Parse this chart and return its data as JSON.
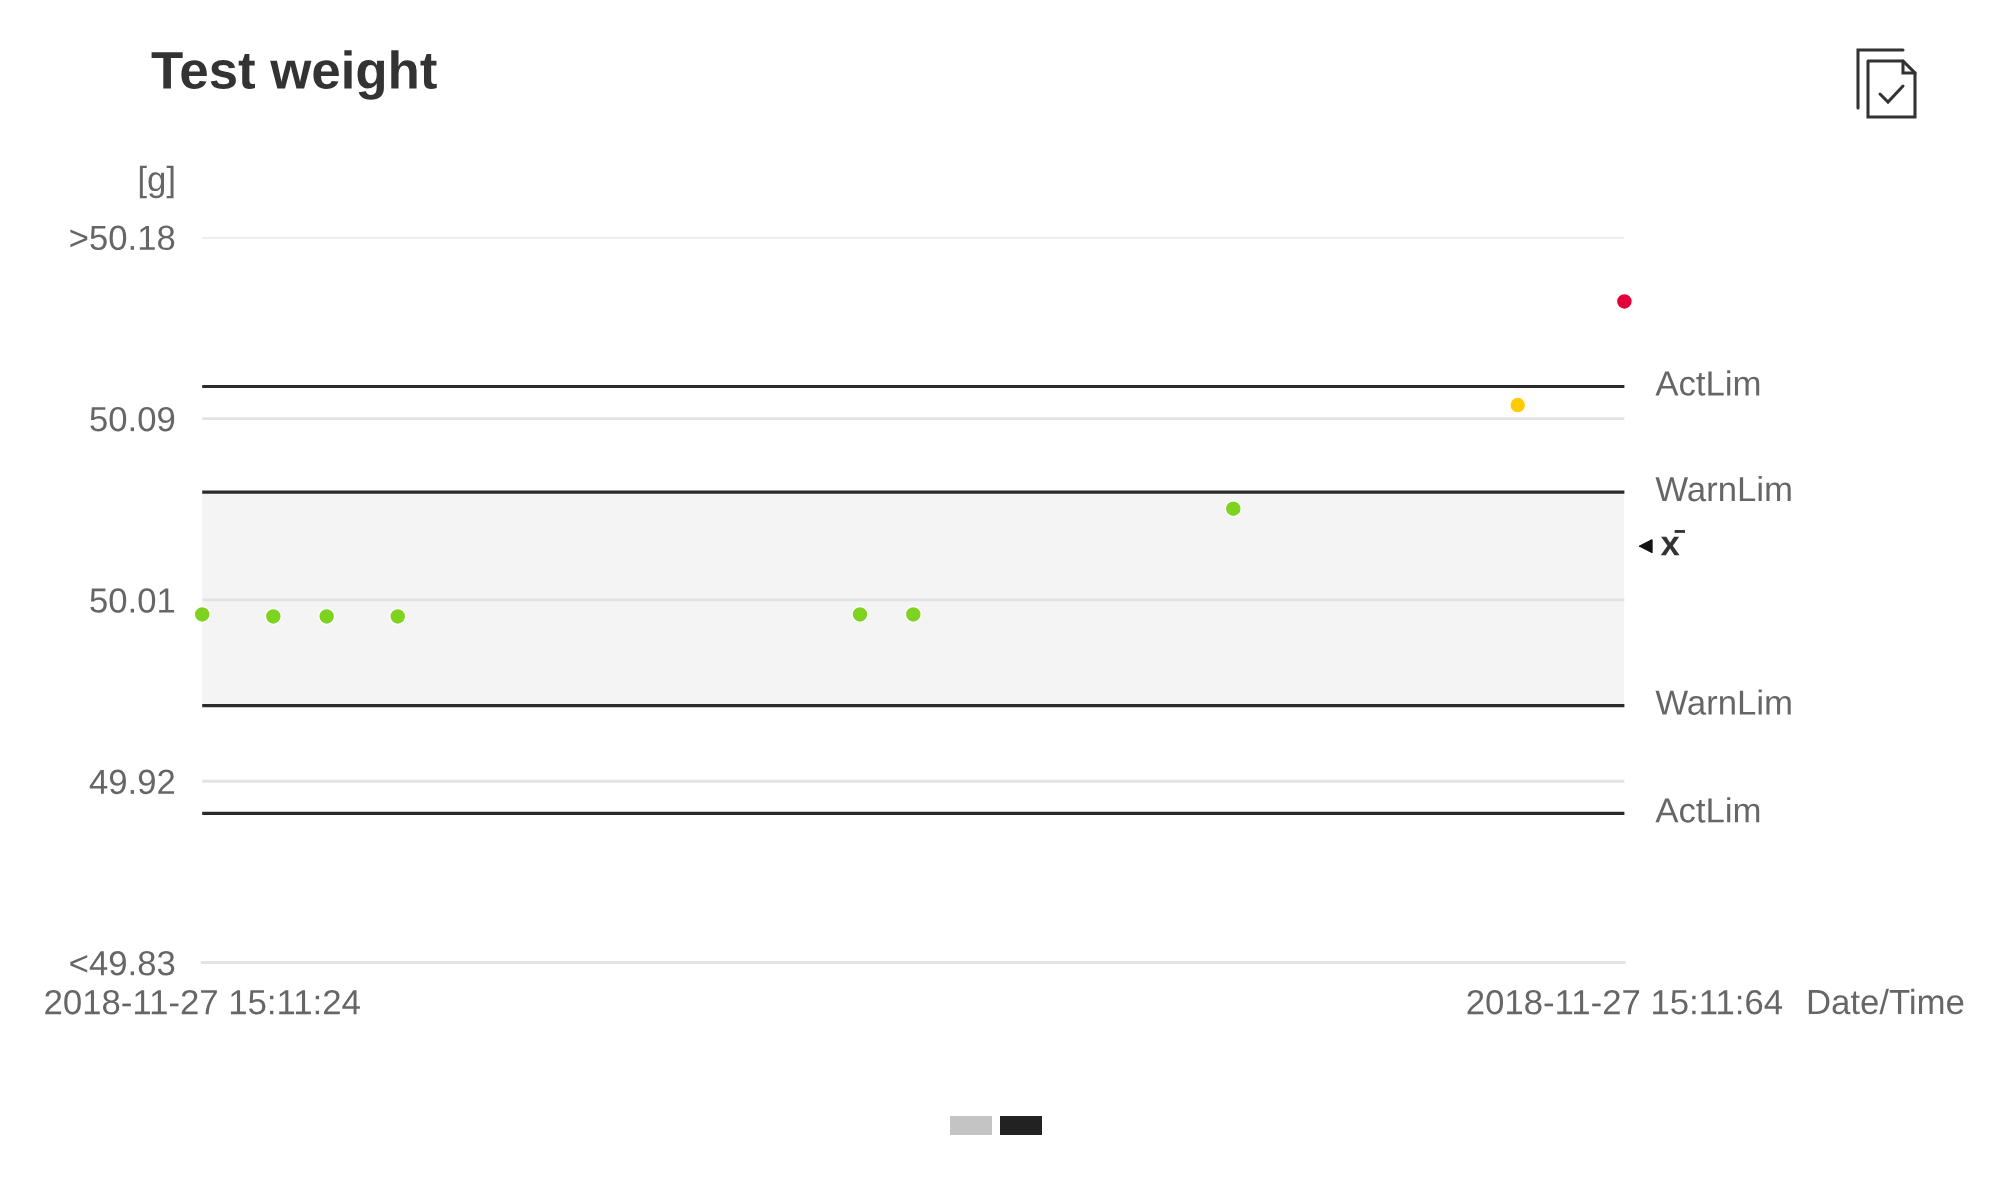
{
  "chart_data": {
    "type": "scatter",
    "title": "Test weight",
    "ylabel": "[g]",
    "xlabel": "Date/Time",
    "categories": [
      "2018-11-27 15:11:24",
      null,
      null,
      null,
      null,
      null,
      null,
      null,
      null,
      null,
      null,
      null,
      null,
      null,
      null,
      null,
      null,
      null,
      null,
      null,
      null,
      null,
      null,
      null,
      null,
      null,
      null,
      null,
      null,
      null,
      null,
      null,
      null,
      null,
      null,
      null,
      null,
      null,
      null,
      null,
      null,
      null,
      null,
      null,
      null,
      null,
      null,
      null,
      null,
      null,
      null,
      null,
      null,
      null,
      null,
      null,
      null,
      null,
      null,
      null,
      null,
      null,
      null,
      null,
      null,
      null,
      null,
      null,
      null,
      null,
      null,
      null,
      null,
      null,
      null,
      null,
      null,
      null,
      null,
      null,
      "2018-11-27 15:11:64"
    ],
    "values": [
      49.998,
      null,
      null,
      null,
      49.997,
      null,
      null,
      49.997,
      null,
      null,
      null,
      49.997,
      null,
      null,
      null,
      null,
      null,
      null,
      null,
      null,
      null,
      null,
      null,
      null,
      null,
      null,
      null,
      null,
      null,
      null,
      null,
      null,
      null,
      null,
      null,
      null,
      null,
      49.998,
      null,
      null,
      49.998,
      null,
      null,
      null,
      null,
      null,
      null,
      null,
      null,
      null,
      null,
      null,
      null,
      null,
      null,
      null,
      null,
      null,
      50.049,
      null,
      null,
      null,
      null,
      null,
      null,
      null,
      null,
      null,
      null,
      null,
      null,
      null,
      null,
      null,
      50.099,
      null,
      null,
      null,
      null,
      null,
      50.149
    ],
    "colors": [
      "#7ed321",
      null,
      null,
      null,
      "#7ed321",
      null,
      null,
      "#7ed321",
      null,
      null,
      null,
      "#7ed321",
      null,
      null,
      null,
      null,
      null,
      null,
      null,
      null,
      null,
      null,
      null,
      null,
      null,
      null,
      null,
      null,
      null,
      null,
      null,
      null,
      null,
      null,
      null,
      null,
      null,
      "#7ed321",
      null,
      null,
      "#7ed321",
      null,
      null,
      null,
      null,
      null,
      null,
      null,
      null,
      null,
      null,
      null,
      null,
      null,
      null,
      null,
      null,
      null,
      "#7ed321",
      null,
      null,
      null,
      null,
      null,
      null,
      null,
      null,
      null,
      null,
      null,
      null,
      null,
      null,
      null,
      "#ffcc00",
      null,
      null,
      null,
      null,
      null,
      "#e4003b"
    ],
    "marker": "circle",
    "ylim": [
      49.83,
      50.18
    ],
    "yticks": [
      {
        "value": 49.83,
        "label": "<49.83"
      },
      {
        "value": 49.9175,
        "label": "49.92"
      },
      {
        "value": 50.005,
        "label": "50.01"
      },
      {
        "value": 50.0925,
        "label": "50.09"
      },
      {
        "value": 50.18,
        "label": ">50.18"
      }
    ],
    "grid": "y",
    "ref_lines": [
      {
        "axis": "y",
        "value": 50.108,
        "label": "ActLim",
        "color": "#2b2b2b"
      },
      {
        "axis": "y",
        "value": 50.057,
        "label": "WarnLim",
        "color": "#2b2b2b"
      },
      {
        "axis": "y",
        "value": 49.954,
        "label": "WarnLim",
        "color": "#2b2b2b"
      },
      {
        "axis": "y",
        "value": 49.902,
        "label": "ActLim",
        "color": "#2b2b2b"
      }
    ],
    "bands": [
      {
        "axis": "y",
        "from": 49.954,
        "to": 50.057,
        "color": "#f4f4f4"
      }
    ],
    "annotations": [
      "x̄"
    ]
  }
}
